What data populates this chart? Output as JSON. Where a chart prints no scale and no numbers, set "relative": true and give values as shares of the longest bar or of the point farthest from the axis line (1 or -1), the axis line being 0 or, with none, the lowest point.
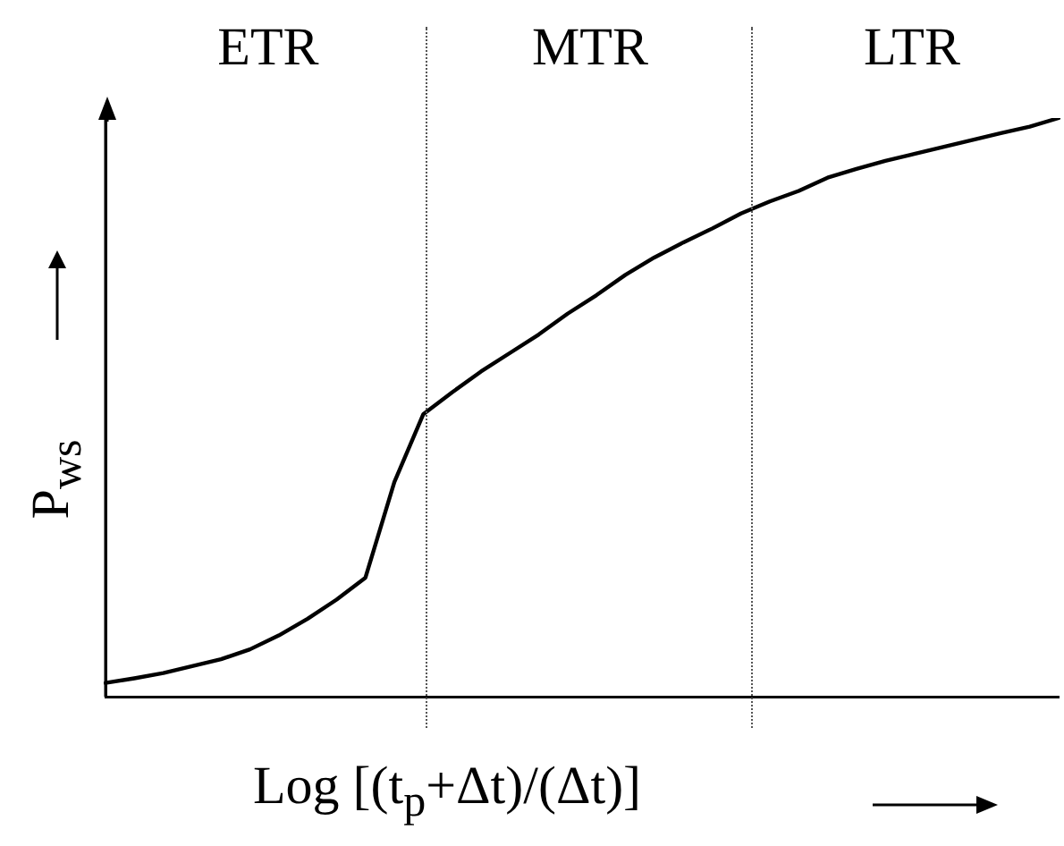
{
  "chart_data": {
    "type": "line",
    "relative": true,
    "xlabel": "Log [(t$_{p}$+Δt)/(Δt)]",
    "ylabel": "P$_{ws}$",
    "grid": false,
    "legend": false,
    "marker": "none",
    "line_style": "solid",
    "categories": [
      null,
      null,
      null,
      null,
      null,
      null,
      null,
      null,
      null,
      null,
      null,
      null,
      null,
      null,
      null,
      null,
      null,
      null,
      null,
      null,
      null,
      null,
      null,
      null,
      null,
      null,
      null,
      null,
      null,
      null,
      null,
      null,
      null,
      null
    ],
    "series": [
      {
        "color": "#000000",
        "values": [
          0.024,
          0.032,
          0.041,
          0.053,
          0.065,
          0.082,
          0.106,
          0.135,
          0.168,
          0.206,
          0.371,
          0.488,
          0.526,
          0.562,
          0.594,
          0.626,
          0.662,
          0.694,
          0.729,
          0.759,
          0.785,
          0.809,
          0.835,
          0.856,
          0.874,
          0.897,
          0.912,
          0.926,
          0.938,
          0.95,
          0.962,
          0.974,
          0.985,
          1
        ]
      }
    ],
    "annotations": [
      "ETR",
      "MTR",
      "LTR"
    ]
  }
}
